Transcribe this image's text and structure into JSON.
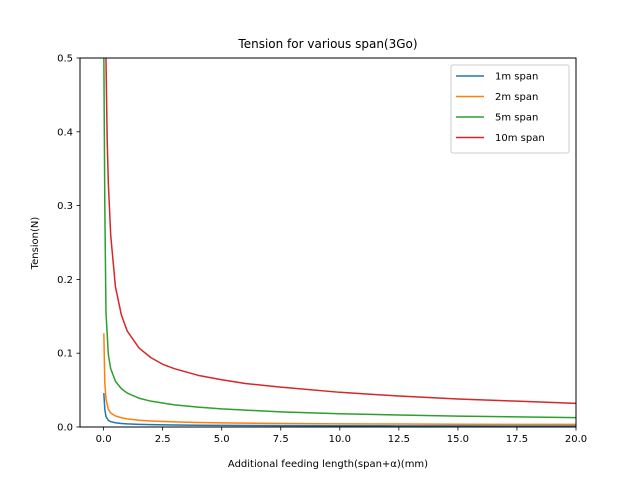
{
  "chart_data": {
    "type": "line",
    "title": "Tension for various span(3Go)",
    "xlabel": "Additional feeding length(span+α)(mm)",
    "ylabel": "Tension(N)",
    "xlim": [
      -1,
      20
    ],
    "ylim": [
      0,
      0.5
    ],
    "xticks": [
      "0.0",
      "2.5",
      "5.0",
      "7.5",
      "10.0",
      "12.5",
      "15.0",
      "17.5",
      "20.0"
    ],
    "yticks": [
      "0.0",
      "0.1",
      "0.2",
      "0.3",
      "0.4",
      "0.5"
    ],
    "grid": false,
    "legend_position": "top-right",
    "series": [
      {
        "name": "1m span",
        "color": "#1f77b4",
        "x": [
          0.01,
          0.05,
          0.1,
          0.2,
          0.3,
          0.5,
          0.75,
          1,
          1.5,
          2,
          3,
          4,
          5,
          7.5,
          10,
          12.5,
          15,
          17.5,
          20
        ],
        "y": [
          0.045,
          0.024,
          0.014,
          0.009,
          0.0072,
          0.0057,
          0.0048,
          0.0042,
          0.0036,
          0.0032,
          0.0027,
          0.0024,
          0.0022,
          0.0019,
          0.0017,
          0.0016,
          0.0015,
          0.0014,
          0.0014
        ]
      },
      {
        "name": "2m span",
        "color": "#ff7f0e",
        "x": [
          0.01,
          0.05,
          0.1,
          0.2,
          0.3,
          0.5,
          0.75,
          1,
          1.5,
          2,
          3,
          4,
          5,
          7.5,
          10,
          12.5,
          15,
          17.5,
          20
        ],
        "y": [
          0.126,
          0.06,
          0.038,
          0.024,
          0.019,
          0.015,
          0.0125,
          0.011,
          0.0092,
          0.0082,
          0.0069,
          0.0061,
          0.0056,
          0.0048,
          0.0043,
          0.004,
          0.0038,
          0.0036,
          0.0035
        ]
      },
      {
        "name": "5m span",
        "color": "#2ca02c",
        "x": [
          0.01,
          0.05,
          0.1,
          0.2,
          0.3,
          0.5,
          0.75,
          1,
          1.5,
          2,
          3,
          4,
          5,
          7.5,
          10,
          12.5,
          15,
          17.5,
          20
        ],
        "y": [
          0.5,
          0.3,
          0.155,
          0.098,
          0.079,
          0.062,
          0.052,
          0.046,
          0.039,
          0.035,
          0.03,
          0.027,
          0.0245,
          0.0205,
          0.018,
          0.0162,
          0.0148,
          0.0137,
          0.0127
        ]
      },
      {
        "name": "10m span",
        "color": "#d62728",
        "x": [
          0.1,
          0.15,
          0.2,
          0.3,
          0.5,
          0.75,
          1,
          1.5,
          2,
          2.5,
          3,
          4,
          5,
          6,
          7.5,
          10,
          12.5,
          15,
          17.5,
          20
        ],
        "y": [
          0.5,
          0.39,
          0.33,
          0.26,
          0.19,
          0.152,
          0.13,
          0.107,
          0.094,
          0.085,
          0.079,
          0.07,
          0.064,
          0.059,
          0.054,
          0.047,
          0.042,
          0.038,
          0.035,
          0.032
        ]
      }
    ]
  }
}
